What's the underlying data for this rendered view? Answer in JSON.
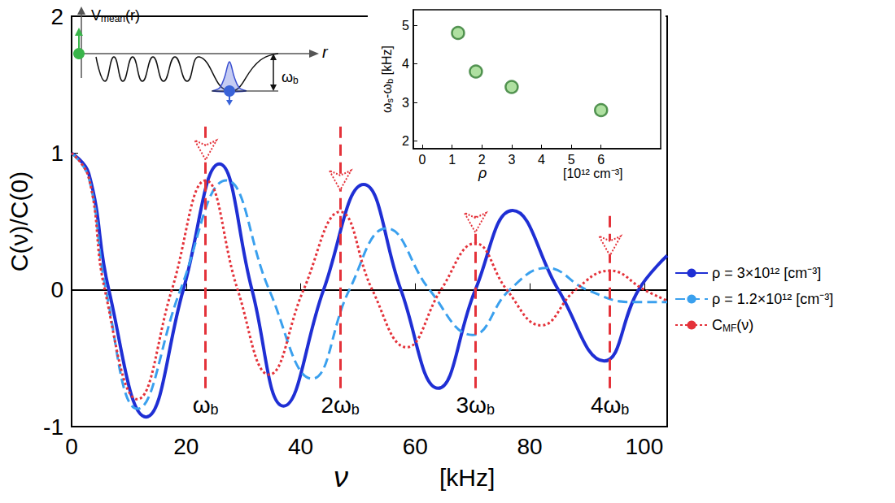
{
  "chart_data": [
    {
      "type": "line",
      "ylabel": "C(ν)/C(0)",
      "xlabel": "ν",
      "xunit": "[kHz]",
      "xlim": [
        0,
        104
      ],
      "xticks": [
        0,
        20,
        40,
        60,
        80,
        100
      ],
      "ylim": [
        -1,
        2
      ],
      "yticks": [
        -1,
        0,
        1,
        2
      ],
      "grid": false,
      "legend": "right",
      "series": [
        {
          "name": "ρ = 3×10¹² [cm⁻³]",
          "color": "#1f2fd4",
          "line_style": "solid",
          "x": [
            0,
            3,
            6.5,
            13,
            19.5,
            25.8,
            31.5,
            37,
            44,
            51,
            57.5,
            64,
            70.5,
            77,
            85,
            93,
            99,
            104
          ],
          "values": [
            1,
            0.85,
            0,
            -0.93,
            0,
            0.92,
            0,
            -0.85,
            0,
            0.77,
            0,
            -0.72,
            0,
            0.58,
            0,
            -0.52,
            0,
            0.25
          ]
        },
        {
          "name": "ρ = 1.2×10¹² [cm⁻³]",
          "color": "#3aa0ee",
          "line_style": "dashed",
          "x": [
            0,
            3,
            6,
            11.5,
            19,
            27,
            34.5,
            42,
            48.5,
            55,
            62.5,
            70,
            76.5,
            83,
            90,
            98,
            104
          ],
          "values": [
            1,
            0.82,
            0,
            -0.87,
            0,
            0.8,
            0,
            -0.65,
            0,
            0.45,
            0,
            -0.33,
            0,
            0.16,
            0,
            -0.09,
            -0.09
          ]
        },
        {
          "name": "CMF(ν)",
          "color": "#e4323a",
          "line_style": "dotted",
          "x": [
            0,
            3,
            5.8,
            11.5,
            17.5,
            23.4,
            29,
            34.5,
            40.5,
            46.9,
            52.5,
            58.5,
            64.5,
            70.5,
            76,
            82,
            88,
            94,
            100,
            104
          ],
          "values": [
            1,
            0.82,
            0,
            -0.8,
            0,
            0.8,
            0,
            -0.62,
            0,
            0.57,
            0,
            -0.42,
            0,
            0.34,
            0,
            -0.26,
            0,
            0.14,
            0,
            -0.08
          ]
        }
      ],
      "harmonics": [
        {
          "label": "ωb",
          "x": 23.4,
          "y_range": [
            -0.72,
            1.24
          ],
          "arrow_y": 0.95
        },
        {
          "label": "2ωb",
          "x": 46.9,
          "y_range": [
            -0.72,
            1.24
          ],
          "arrow_y": 0.73
        },
        {
          "label": "3ωb",
          "x": 70.5,
          "y_range": [
            -0.72,
            0.56
          ],
          "arrow_y": 0.42
        },
        {
          "label": "4ωb",
          "x": 94,
          "y_range": [
            -0.72,
            0.56
          ],
          "arrow_y": 0.25
        }
      ]
    },
    {
      "type": "scatter",
      "ylabel": "ωs-ωb [kHz]",
      "xlabel": "ρ",
      "xunit": "[10¹² cm⁻³]",
      "xlim": [
        -0.3,
        8
      ],
      "xticks": [
        0,
        1,
        2,
        3,
        4,
        5,
        6
      ],
      "ylim": [
        1.8,
        5.4
      ],
      "yticks": [
        2,
        3,
        4,
        5
      ],
      "marker": "circle",
      "color": "#9bd889",
      "x": [
        1.2,
        1.8,
        3,
        6
      ],
      "values": [
        4.8,
        3.8,
        3.4,
        2.8
      ]
    }
  ],
  "schematic": {
    "potential_label": "Vmean(r)",
    "axis_label": "r",
    "depth_label": "ωb"
  }
}
